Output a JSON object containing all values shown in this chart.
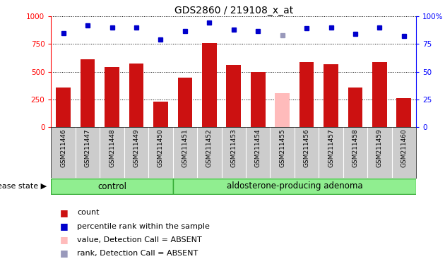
{
  "title": "GDS2860 / 219108_x_at",
  "samples": [
    "GSM211446",
    "GSM211447",
    "GSM211448",
    "GSM211449",
    "GSM211450",
    "GSM211451",
    "GSM211452",
    "GSM211453",
    "GSM211454",
    "GSM211455",
    "GSM211456",
    "GSM211457",
    "GSM211458",
    "GSM211459",
    "GSM211460"
  ],
  "counts": [
    360,
    610,
    540,
    575,
    230,
    450,
    760,
    560,
    500,
    310,
    590,
    570,
    360,
    590,
    265
  ],
  "absent_count": [
    null,
    null,
    null,
    null,
    null,
    null,
    null,
    null,
    null,
    310,
    null,
    null,
    null,
    null,
    null
  ],
  "percentile_ranks": [
    85,
    92,
    90,
    90,
    79,
    87,
    94,
    88,
    87,
    null,
    89,
    90,
    84,
    90,
    82
  ],
  "absent_rank": [
    null,
    null,
    null,
    null,
    null,
    null,
    null,
    null,
    null,
    83,
    null,
    null,
    null,
    null,
    null
  ],
  "bar_color_normal": "#cc1111",
  "bar_color_absent": "#ffbbbb",
  "dot_color_normal": "#0000cc",
  "dot_color_absent": "#9999bb",
  "ylim_left": [
    0,
    1000
  ],
  "ylim_right": [
    0,
    100
  ],
  "group1_label": "control",
  "group2_label": "aldosterone-producing adenoma",
  "group1_count": 5,
  "disease_state_label": "disease state",
  "legend_items": [
    {
      "label": "count",
      "color": "#cc1111"
    },
    {
      "label": "percentile rank within the sample",
      "color": "#0000cc"
    },
    {
      "label": "value, Detection Call = ABSENT",
      "color": "#ffbbbb"
    },
    {
      "label": "rank, Detection Call = ABSENT",
      "color": "#9999bb"
    }
  ]
}
